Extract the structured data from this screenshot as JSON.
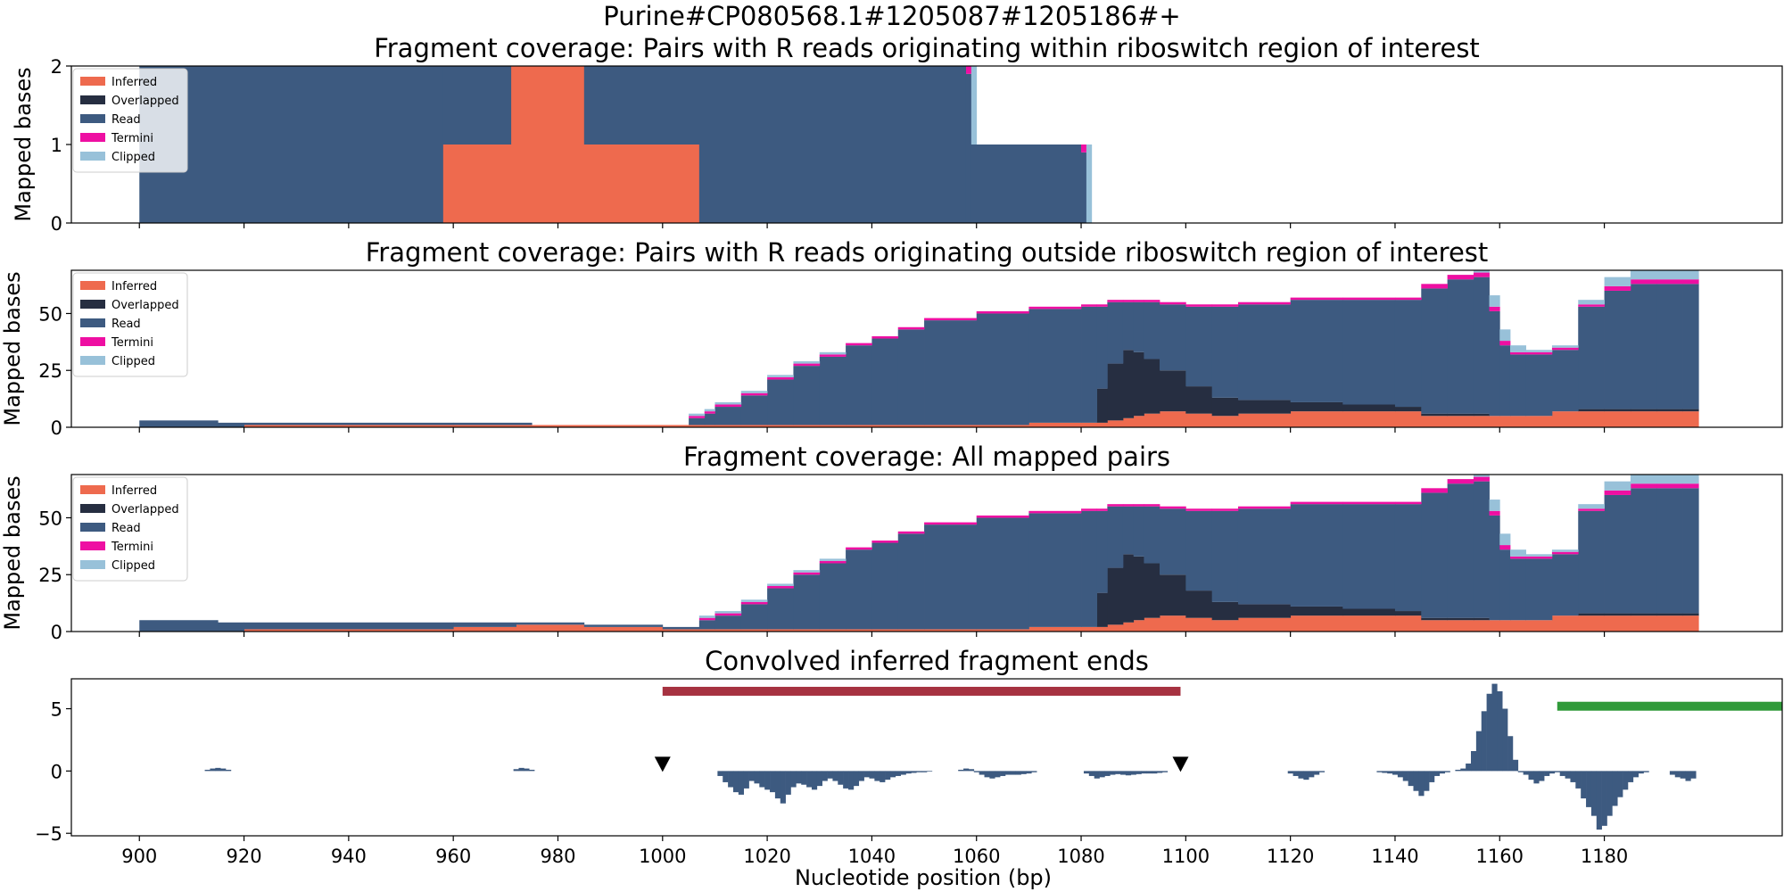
{
  "figure": {
    "suptitle": "Purine#CP080568.1#1205087#1205186#+",
    "xlabel": "Nucleotide position (bp)",
    "xticks": [
      900,
      920,
      940,
      960,
      980,
      1000,
      1020,
      1040,
      1060,
      1080,
      1100,
      1120,
      1140,
      1160,
      1180
    ],
    "xlim": [
      887,
      1214
    ]
  },
  "legend": {
    "items": [
      {
        "label": "Inferred",
        "color": "#ee6a4e"
      },
      {
        "label": "Overlapped",
        "color": "#262e41"
      },
      {
        "label": "Read",
        "color": "#3d5a80"
      },
      {
        "label": "Termini",
        "color": "#ee0fa2"
      },
      {
        "label": "Clipped",
        "color": "#98c1d9"
      }
    ]
  },
  "chart_data": [
    {
      "type": "area",
      "title": "Fragment coverage: Pairs with R reads originating within riboswitch region of interest",
      "ylabel": "Mapped bases",
      "ylim": [
        0,
        2
      ],
      "yticks": [
        0,
        1,
        2
      ],
      "legend_position": "upper-left",
      "stacked": true,
      "x_breaks": [
        900,
        958,
        971,
        985,
        1007,
        1058,
        1059,
        1060,
        1080,
        1081,
        1082
      ],
      "series": [
        {
          "name": "Inferred",
          "values": [
            0,
            1,
            2,
            1,
            0,
            0,
            0,
            0,
            0,
            0
          ]
        },
        {
          "name": "Overlapped",
          "values": [
            0,
            0,
            0,
            0,
            0,
            0,
            0,
            0,
            0,
            0
          ]
        },
        {
          "name": "Read",
          "values": [
            2,
            1,
            0,
            1,
            2,
            1.9,
            1,
            1,
            0.9,
            0
          ]
        },
        {
          "name": "Termini",
          "values": [
            0,
            0,
            0,
            0,
            0,
            0.1,
            0,
            0,
            0.1,
            0
          ]
        },
        {
          "name": "Clipped",
          "values": [
            0,
            0,
            0,
            0,
            0,
            0,
            1,
            0,
            0,
            1
          ]
        }
      ]
    },
    {
      "type": "area",
      "title": "Fragment coverage: Pairs with R reads originating outside riboswitch region of interest",
      "ylabel": "Mapped bases",
      "ylim": [
        0,
        69
      ],
      "yticks": [
        0,
        25,
        50
      ],
      "legend_position": "upper-left",
      "stacked": true,
      "x": [
        900,
        915,
        920,
        960,
        975,
        990,
        1005,
        1008,
        1010,
        1015,
        1020,
        1025,
        1030,
        1035,
        1040,
        1045,
        1050,
        1060,
        1070,
        1080,
        1083,
        1085,
        1088,
        1090,
        1092,
        1095,
        1100,
        1105,
        1110,
        1120,
        1130,
        1140,
        1145,
        1150,
        1155,
        1158,
        1160,
        1162,
        1165,
        1170,
        1175,
        1180,
        1185,
        1190,
        1195,
        1198
      ],
      "series": [
        {
          "name": "Inferred",
          "values": [
            0,
            0,
            1,
            1,
            1,
            1,
            1,
            1,
            1,
            1,
            1,
            1,
            1,
            1,
            1,
            1,
            1,
            1,
            2,
            2,
            2,
            3,
            4,
            5,
            6,
            7,
            6,
            5,
            6,
            7,
            7,
            7,
            5,
            5,
            5,
            5,
            5,
            5,
            5,
            7,
            7,
            7,
            7,
            7,
            7,
            7
          ]
        },
        {
          "name": "Overlapped",
          "values": [
            0,
            0,
            0,
            0,
            0,
            0,
            0,
            0,
            0,
            0,
            0,
            0,
            0,
            0,
            0,
            0,
            0,
            0,
            0,
            0,
            15,
            25,
            30,
            28,
            24,
            18,
            12,
            8,
            6,
            4,
            3,
            2,
            1,
            1,
            1,
            0,
            0,
            0,
            0,
            0,
            1,
            1,
            1,
            1,
            1,
            1
          ]
        },
        {
          "name": "Read",
          "values": [
            3,
            2,
            1,
            1,
            0,
            0,
            3,
            5,
            8,
            13,
            20,
            26,
            30,
            35,
            38,
            42,
            46,
            49,
            50,
            51,
            36,
            27,
            21,
            22,
            25,
            29,
            35,
            40,
            42,
            45,
            46,
            47,
            55,
            59,
            60,
            46,
            31,
            27,
            27,
            27,
            45,
            52,
            55,
            55,
            55,
            56
          ]
        },
        {
          "name": "Termini",
          "values": [
            0,
            0,
            0,
            0,
            0,
            0,
            1,
            1,
            1,
            1,
            1,
            1,
            1,
            1,
            1,
            1,
            1,
            1,
            1,
            1,
            1,
            1,
            1,
            1,
            1,
            1,
            1,
            1,
            1,
            1,
            1,
            1,
            2,
            2,
            2,
            2,
            2,
            1,
            1,
            1,
            1,
            2,
            2,
            2,
            2,
            3
          ]
        },
        {
          "name": "Clipped",
          "values": [
            0,
            0,
            0,
            0,
            0,
            0,
            1,
            1,
            1,
            1,
            1,
            1,
            1,
            0,
            0,
            0,
            0,
            0,
            0,
            0,
            0,
            0,
            0,
            0,
            0,
            0,
            0,
            0,
            0,
            0,
            0,
            0,
            0,
            0,
            2,
            5,
            5,
            3,
            1,
            1,
            2,
            4,
            5,
            5,
            4,
            1
          ]
        }
      ]
    },
    {
      "type": "area",
      "title": "Fragment coverage: All mapped pairs",
      "ylabel": "Mapped bases",
      "ylim": [
        0,
        69
      ],
      "yticks": [
        0,
        25,
        50
      ],
      "legend_position": "upper-left",
      "stacked": true,
      "x": [
        900,
        915,
        920,
        960,
        972,
        985,
        1000,
        1007,
        1010,
        1015,
        1020,
        1025,
        1030,
        1035,
        1040,
        1045,
        1050,
        1060,
        1070,
        1080,
        1083,
        1085,
        1088,
        1090,
        1092,
        1095,
        1100,
        1105,
        1110,
        1120,
        1130,
        1140,
        1145,
        1150,
        1155,
        1158,
        1160,
        1162,
        1165,
        1170,
        1175,
        1180,
        1185,
        1190,
        1195,
        1198
      ],
      "series": [
        {
          "name": "Inferred",
          "values": [
            0,
            0,
            1,
            2,
            3,
            2,
            1,
            1,
            1,
            1,
            1,
            1,
            1,
            1,
            1,
            1,
            1,
            1,
            2,
            2,
            2,
            3,
            4,
            5,
            6,
            7,
            6,
            5,
            6,
            7,
            7,
            7,
            5,
            5,
            5,
            5,
            5,
            5,
            5,
            7,
            7,
            7,
            7,
            7,
            7,
            7
          ]
        },
        {
          "name": "Overlapped",
          "values": [
            0,
            0,
            0,
            0,
            0,
            0,
            0,
            0,
            0,
            0,
            0,
            0,
            0,
            0,
            0,
            0,
            0,
            0,
            0,
            0,
            15,
            25,
            30,
            28,
            24,
            18,
            12,
            8,
            6,
            4,
            3,
            2,
            1,
            1,
            1,
            0,
            0,
            0,
            0,
            0,
            1,
            1,
            1,
            1,
            1,
            1
          ]
        },
        {
          "name": "Read",
          "values": [
            5,
            4,
            3,
            2,
            1,
            1,
            1,
            4,
            6,
            11,
            18,
            24,
            29,
            35,
            38,
            42,
            46,
            49,
            50,
            51,
            36,
            27,
            21,
            22,
            25,
            29,
            35,
            40,
            42,
            45,
            46,
            47,
            55,
            59,
            60,
            46,
            31,
            27,
            27,
            27,
            45,
            52,
            55,
            55,
            55,
            56
          ]
        },
        {
          "name": "Termini",
          "values": [
            0,
            0,
            0,
            0,
            0,
            0,
            0,
            1,
            1,
            1,
            1,
            1,
            1,
            1,
            1,
            1,
            1,
            1,
            1,
            1,
            1,
            1,
            1,
            1,
            1,
            1,
            1,
            1,
            1,
            1,
            1,
            1,
            2,
            2,
            2,
            2,
            2,
            1,
            1,
            1,
            1,
            2,
            2,
            2,
            2,
            3
          ]
        },
        {
          "name": "Clipped",
          "values": [
            0,
            0,
            0,
            0,
            0,
            0,
            0,
            1,
            1,
            1,
            1,
            1,
            1,
            0,
            0,
            0,
            0,
            0,
            0,
            0,
            0,
            0,
            0,
            0,
            0,
            0,
            0,
            0,
            0,
            0,
            0,
            0,
            0,
            0,
            2,
            5,
            5,
            3,
            1,
            1,
            2,
            4,
            5,
            5,
            4,
            1
          ]
        }
      ]
    },
    {
      "type": "bar",
      "title": "Convolved inferred fragment ends",
      "ylim": [
        -5.2,
        7.4
      ],
      "yticks": [
        -5,
        0,
        5
      ],
      "color": "#3d5a80",
      "x": [
        913,
        914,
        915,
        916,
        917,
        972,
        973,
        974,
        975,
        1011,
        1012,
        1013,
        1014,
        1015,
        1016,
        1017,
        1018,
        1019,
        1020,
        1021,
        1022,
        1023,
        1024,
        1025,
        1026,
        1027,
        1028,
        1029,
        1030,
        1031,
        1032,
        1033,
        1034,
        1035,
        1036,
        1037,
        1038,
        1039,
        1040,
        1041,
        1042,
        1043,
        1044,
        1045,
        1046,
        1047,
        1048,
        1049,
        1050,
        1051,
        1057,
        1058,
        1059,
        1060,
        1061,
        1062,
        1063,
        1064,
        1065,
        1066,
        1067,
        1068,
        1069,
        1070,
        1071,
        1081,
        1082,
        1083,
        1084,
        1085,
        1086,
        1087,
        1088,
        1089,
        1090,
        1091,
        1092,
        1093,
        1094,
        1095,
        1096,
        1120,
        1121,
        1122,
        1123,
        1124,
        1125,
        1126,
        1137,
        1138,
        1139,
        1140,
        1141,
        1142,
        1143,
        1144,
        1145,
        1146,
        1147,
        1148,
        1149,
        1150,
        1151,
        1152,
        1153,
        1154,
        1155,
        1156,
        1157,
        1158,
        1159,
        1160,
        1161,
        1162,
        1163,
        1164,
        1165,
        1166,
        1167,
        1168,
        1169,
        1170,
        1171,
        1172,
        1173,
        1174,
        1175,
        1176,
        1177,
        1178,
        1179,
        1180,
        1181,
        1182,
        1183,
        1184,
        1185,
        1186,
        1187,
        1188,
        1193,
        1194,
        1195,
        1196,
        1197
      ],
      "values": [
        0.1,
        0.2,
        0.25,
        0.2,
        0.1,
        0.15,
        0.25,
        0.2,
        0.1,
        -0.4,
        -0.9,
        -1.3,
        -1.7,
        -1.9,
        -1.4,
        -0.8,
        -1.0,
        -1.3,
        -1.5,
        -1.7,
        -2.2,
        -2.6,
        -1.9,
        -1.3,
        -1.0,
        -1.1,
        -1.3,
        -1.5,
        -1.2,
        -0.8,
        -0.6,
        -0.8,
        -1.1,
        -1.4,
        -1.5,
        -1.2,
        -0.8,
        -0.5,
        -0.6,
        -0.8,
        -0.9,
        -0.7,
        -0.5,
        -0.4,
        -0.3,
        -0.2,
        -0.15,
        -0.1,
        -0.1,
        -0.05,
        0.1,
        0.2,
        0.15,
        -0.1,
        -0.3,
        -0.5,
        -0.6,
        -0.5,
        -0.4,
        -0.3,
        -0.3,
        -0.3,
        -0.25,
        -0.2,
        -0.1,
        -0.2,
        -0.4,
        -0.6,
        -0.5,
        -0.4,
        -0.3,
        -0.25,
        -0.3,
        -0.35,
        -0.3,
        -0.25,
        -0.2,
        -0.2,
        -0.2,
        -0.15,
        -0.1,
        -0.2,
        -0.4,
        -0.6,
        -0.7,
        -0.5,
        -0.3,
        -0.1,
        -0.1,
        -0.15,
        -0.2,
        -0.3,
        -0.5,
        -0.8,
        -1.2,
        -1.6,
        -2.0,
        -1.6,
        -0.9,
        -0.4,
        -0.2,
        -0.1,
        0.0,
        0.1,
        0.2,
        0.6,
        1.6,
        3.2,
        4.8,
        6.2,
        7.0,
        6.4,
        5.0,
        2.8,
        0.9,
        -0.1,
        -0.3,
        -0.7,
        -1.0,
        -0.8,
        -0.4,
        -0.2,
        -0.1,
        -0.4,
        -0.6,
        -0.9,
        -1.4,
        -2.2,
        -2.9,
        -3.6,
        -4.7,
        -4.4,
        -3.6,
        -2.8,
        -2.1,
        -1.5,
        -0.9,
        -0.5,
        -0.2,
        -0.1,
        -0.3,
        -0.5,
        -0.6,
        -0.8,
        -0.6
      ],
      "intervals": [
        {
          "start": 1000,
          "end": 1099,
          "y": 6.4,
          "color": "#a63241"
        },
        {
          "start": 1171,
          "end": 1214,
          "y": 5.2,
          "color": "#309a3a"
        }
      ],
      "markers": [
        {
          "x": 1000,
          "y": 0.5,
          "shape": "triangle-down",
          "color": "#000000"
        },
        {
          "x": 1099,
          "y": 0.5,
          "shape": "triangle-down",
          "color": "#000000"
        }
      ]
    }
  ]
}
